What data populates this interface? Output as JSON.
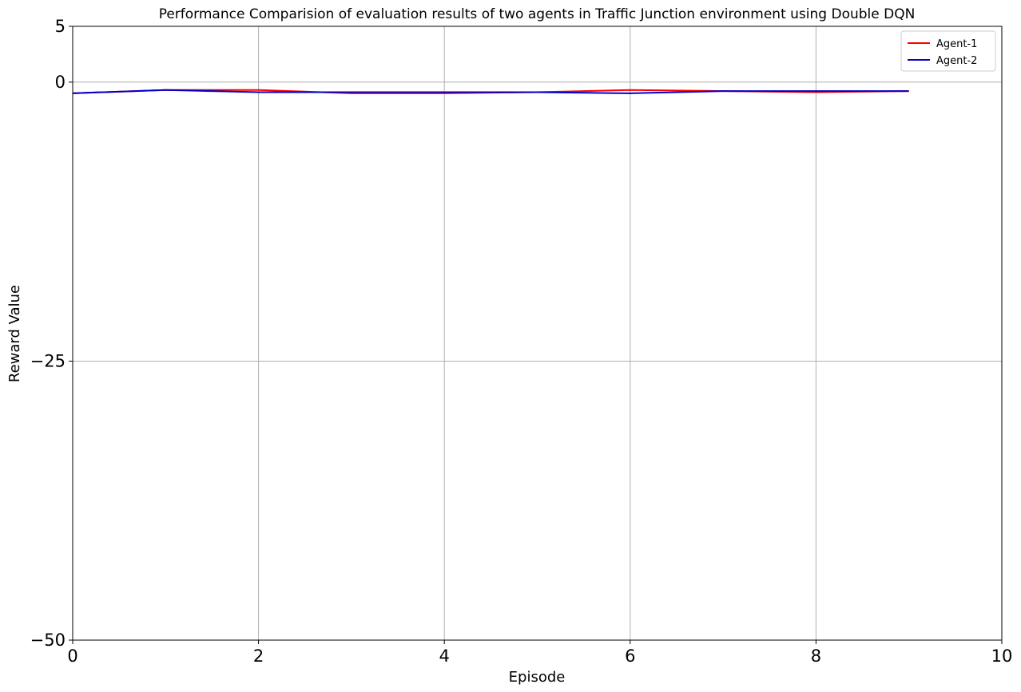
{
  "chart_data": {
    "type": "line",
    "title": "Performance Comparision of evaluation results of two agents in Traffic Junction environment using Double DQN",
    "xlabel": "Episode",
    "ylabel": "Reward Value",
    "xlim": [
      0,
      10
    ],
    "ylim": [
      -50,
      5
    ],
    "xticks": [
      0,
      2,
      4,
      6,
      8,
      10
    ],
    "xtick_labels": [
      "0",
      "2",
      "4",
      "6",
      "8",
      "10"
    ],
    "yticks": [
      -50,
      -25,
      0,
      5
    ],
    "ytick_labels": [
      "−50",
      "−25",
      "0",
      "5"
    ],
    "grid": true,
    "legend_position": "top-right",
    "x": [
      0,
      1,
      2,
      3,
      4,
      5,
      6,
      7,
      8,
      9
    ],
    "series": [
      {
        "name": "Agent-1",
        "color": "#ff0000",
        "values": [
          -1.0,
          -0.7,
          -0.7,
          -1.0,
          -1.0,
          -0.9,
          -0.7,
          -0.8,
          -0.9,
          -0.8
        ]
      },
      {
        "name": "Agent-2",
        "color": "#0000cc",
        "values": [
          -1.0,
          -0.7,
          -0.9,
          -0.9,
          -0.9,
          -0.9,
          -1.0,
          -0.8,
          -0.8,
          -0.8
        ]
      }
    ]
  }
}
